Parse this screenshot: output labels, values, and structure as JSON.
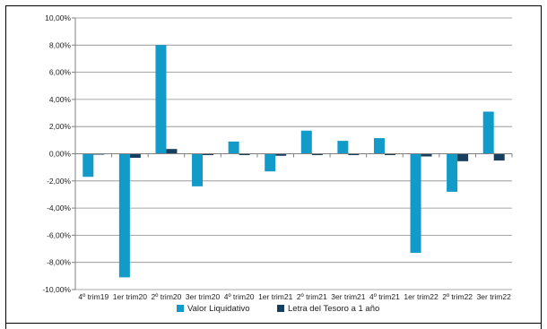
{
  "chart_data": {
    "type": "bar",
    "categories": [
      "4º trim19",
      "1er trim20",
      "2º trim20",
      "3er trim20",
      "4º trim20",
      "1er trim21",
      "2º trim21",
      "3er trim21",
      "4º trim21",
      "1er trim22",
      "2º trim22",
      "3er trim22"
    ],
    "series": [
      {
        "name": "Valor Liquidativo",
        "color": "#129AC9",
        "values": [
          -1.7,
          -9.1,
          8.0,
          -2.4,
          0.9,
          -1.3,
          1.7,
          0.95,
          1.15,
          -7.3,
          -2.8,
          3.1
        ]
      },
      {
        "name": "Letra del Tesoro a 1 año",
        "color": "#163F60",
        "values": [
          -0.05,
          -0.3,
          0.35,
          -0.1,
          -0.1,
          -0.15,
          -0.1,
          -0.1,
          -0.1,
          -0.2,
          -0.55,
          -0.5
        ]
      }
    ],
    "yticks": [
      "10,00%",
      "8,00%",
      "6,00%",
      "4,00%",
      "2,00%",
      "0,00%",
      "-2,00%",
      "-4,00%",
      "-6,00%",
      "-8,00%",
      "-10,00%"
    ],
    "ylim": [
      -10,
      10
    ],
    "grid": true,
    "legend_position": "bottom"
  }
}
